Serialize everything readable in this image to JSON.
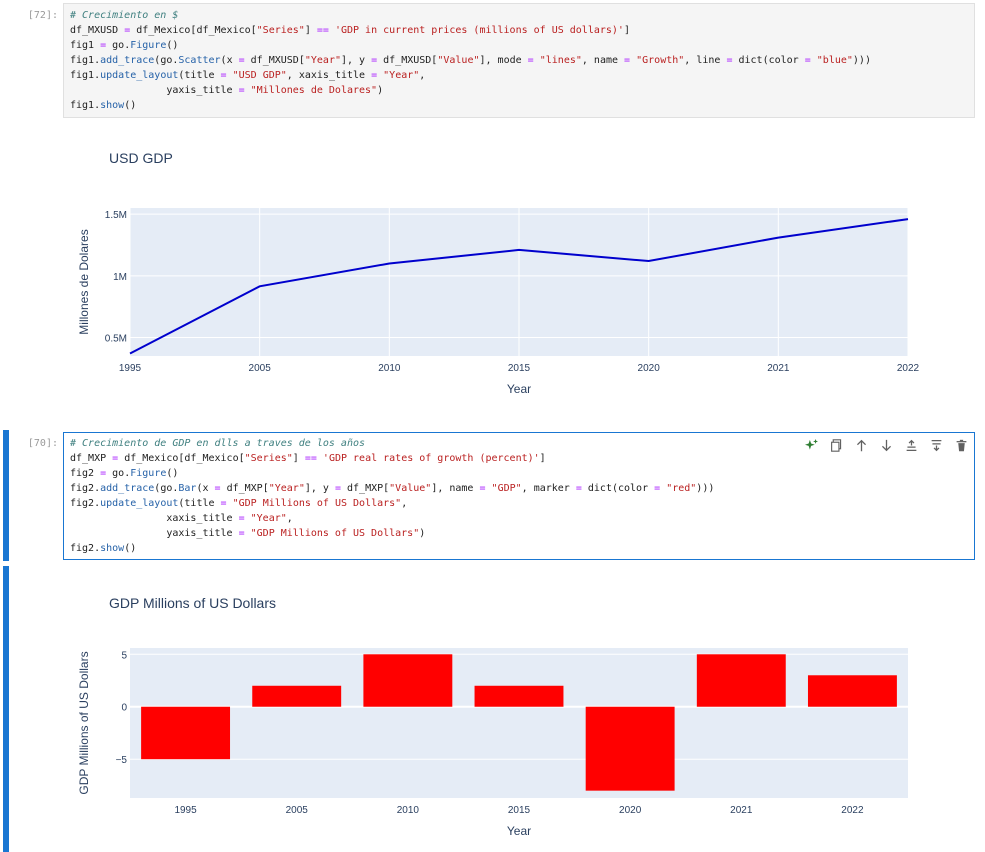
{
  "cell1": {
    "prompt": "[72]:",
    "code": [
      [
        [
          "c",
          "# Crecimiento en $"
        ]
      ],
      [
        [
          "t",
          "df_MXUSD "
        ],
        [
          "e",
          "="
        ],
        [
          "t",
          " df_Mexico[df_Mexico["
        ],
        [
          "s",
          "\"Series\""
        ],
        [
          "t",
          "] "
        ],
        [
          "e",
          "=="
        ],
        [
          "t",
          " "
        ],
        [
          "s",
          "'GDP in current prices (millions of US dollars)'"
        ],
        [
          "t",
          "]"
        ]
      ],
      [
        [
          "t",
          "fig1 "
        ],
        [
          "e",
          "="
        ],
        [
          "t",
          " go."
        ],
        [
          "f",
          "Figure"
        ],
        [
          "t",
          "()"
        ]
      ],
      [
        [
          "t",
          "fig1."
        ],
        [
          "f",
          "add_trace"
        ],
        [
          "t",
          "(go."
        ],
        [
          "f",
          "Scatter"
        ],
        [
          "t",
          "(x "
        ],
        [
          "e",
          "="
        ],
        [
          "t",
          " df_MXUSD["
        ],
        [
          "s",
          "\"Year\""
        ],
        [
          "t",
          "], y "
        ],
        [
          "e",
          "="
        ],
        [
          "t",
          " df_MXUSD["
        ],
        [
          "s",
          "\"Value\""
        ],
        [
          "t",
          "], mode "
        ],
        [
          "e",
          "="
        ],
        [
          "t",
          " "
        ],
        [
          "s",
          "\"lines\""
        ],
        [
          "t",
          ", name "
        ],
        [
          "e",
          "="
        ],
        [
          "t",
          " "
        ],
        [
          "s",
          "\"Growth\""
        ],
        [
          "t",
          ", line "
        ],
        [
          "e",
          "="
        ],
        [
          "t",
          " dict(color "
        ],
        [
          "e",
          "="
        ],
        [
          "t",
          " "
        ],
        [
          "s",
          "\"blue\""
        ],
        [
          "t",
          ")))"
        ]
      ],
      [
        [
          "t",
          "fig1."
        ],
        [
          "f",
          "update_layout"
        ],
        [
          "t",
          "(title "
        ],
        [
          "e",
          "="
        ],
        [
          "t",
          " "
        ],
        [
          "s",
          "\"USD GDP\""
        ],
        [
          "t",
          ", xaxis_title "
        ],
        [
          "e",
          "="
        ],
        [
          "t",
          " "
        ],
        [
          "s",
          "\"Year\""
        ],
        [
          "t",
          ","
        ]
      ],
      [
        [
          "t",
          "                yaxis_title "
        ],
        [
          "e",
          "="
        ],
        [
          "t",
          " "
        ],
        [
          "s",
          "\"Millones de Dolares\""
        ],
        [
          "t",
          ")"
        ]
      ],
      [
        [
          "t",
          "fig1."
        ],
        [
          "f",
          "show"
        ],
        [
          "t",
          "()"
        ]
      ]
    ]
  },
  "cell2": {
    "prompt": "[70]:",
    "code": [
      [
        [
          "c",
          "# Crecimiento de GDP en dlls a traves de los años"
        ]
      ],
      [
        [
          "t",
          "df_MXP "
        ],
        [
          "e",
          "="
        ],
        [
          "t",
          " df_Mexico[df_Mexico["
        ],
        [
          "s",
          "\"Series\""
        ],
        [
          "t",
          "] "
        ],
        [
          "e",
          "=="
        ],
        [
          "t",
          " "
        ],
        [
          "s",
          "'GDP real rates of growth (percent)'"
        ],
        [
          "t",
          "]"
        ]
      ],
      [
        [
          "t",
          "fig2 "
        ],
        [
          "e",
          "="
        ],
        [
          "t",
          " go."
        ],
        [
          "f",
          "Figure"
        ],
        [
          "t",
          "()"
        ]
      ],
      [
        [
          "t",
          "fig2."
        ],
        [
          "f",
          "add_trace"
        ],
        [
          "t",
          "(go."
        ],
        [
          "f",
          "Bar"
        ],
        [
          "t",
          "(x "
        ],
        [
          "e",
          "="
        ],
        [
          "t",
          " df_MXP["
        ],
        [
          "s",
          "\"Year\""
        ],
        [
          "t",
          "], y "
        ],
        [
          "e",
          "="
        ],
        [
          "t",
          " df_MXP["
        ],
        [
          "s",
          "\"Value\""
        ],
        [
          "t",
          "], name "
        ],
        [
          "e",
          "="
        ],
        [
          "t",
          " "
        ],
        [
          "s",
          "\"GDP\""
        ],
        [
          "t",
          ", marker "
        ],
        [
          "e",
          "="
        ],
        [
          "t",
          " dict(color "
        ],
        [
          "e",
          "="
        ],
        [
          "t",
          " "
        ],
        [
          "s",
          "\"red\""
        ],
        [
          "t",
          ")))"
        ]
      ],
      [
        [
          "t",
          "fig2."
        ],
        [
          "f",
          "update_layout"
        ],
        [
          "t",
          "(title "
        ],
        [
          "e",
          "="
        ],
        [
          "t",
          " "
        ],
        [
          "s",
          "\"GDP Millions of US Dollars\""
        ],
        [
          "t",
          ","
        ]
      ],
      [
        [
          "t",
          "                xaxis_title "
        ],
        [
          "e",
          "="
        ],
        [
          "t",
          " "
        ],
        [
          "s",
          "\"Year\""
        ],
        [
          "t",
          ","
        ]
      ],
      [
        [
          "t",
          "                yaxis_title "
        ],
        [
          "e",
          "="
        ],
        [
          "t",
          " "
        ],
        [
          "s",
          "\"GDP Millions of US Dollars\""
        ],
        [
          "t",
          ")"
        ]
      ],
      [
        [
          "t",
          "fig2."
        ],
        [
          "f",
          "show"
        ],
        [
          "t",
          "()"
        ]
      ]
    ],
    "toolbar": [
      "sparkle-icon",
      "copy-icon",
      "arrow-up-icon",
      "arrow-down-icon",
      "insert-above-icon",
      "insert-below-icon",
      "trash-icon"
    ]
  },
  "colors": {
    "accent": "#1976d2",
    "plot_bg": "#e5ecf6",
    "line": "#0000cd",
    "bar": "#ff0000",
    "text": "#2a3f5f"
  },
  "chart_data": [
    {
      "type": "line",
      "title": "USD GDP",
      "xlabel": "Year",
      "ylabel": "Millones de Dolares",
      "categories": [
        "1995",
        "2005",
        "2010",
        "2015",
        "2020",
        "2021",
        "2022"
      ],
      "values": [
        370000,
        915000,
        1100000,
        1210000,
        1120000,
        1310000,
        1460000
      ],
      "yticks": [
        {
          "v": 500000,
          "label": "0.5M"
        },
        {
          "v": 1000000,
          "label": "1M"
        },
        {
          "v": 1500000,
          "label": "1.5M"
        }
      ],
      "ylim": [
        350000,
        1550000
      ],
      "grid": true
    },
    {
      "type": "bar",
      "title": "GDP Millions of US Dollars",
      "xlabel": "Year",
      "ylabel": "GDP Millions of US Dollars",
      "categories": [
        "1995",
        "2005",
        "2010",
        "2015",
        "2020",
        "2021",
        "2022"
      ],
      "values": [
        -5,
        2,
        5,
        2,
        -8,
        5,
        3
      ],
      "yticks": [
        {
          "v": -5,
          "label": "−5"
        },
        {
          "v": 0,
          "label": "0"
        },
        {
          "v": 5,
          "label": "5"
        }
      ],
      "ylim": [
        -8.7,
        5.6
      ],
      "grid": true
    }
  ]
}
